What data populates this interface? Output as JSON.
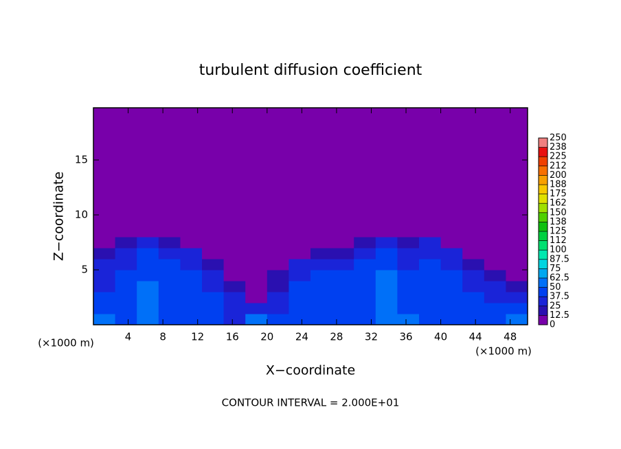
{
  "chart_data": {
    "type": "contour",
    "title": "turbulent diffusion coefficient",
    "xlabel": "X−coordinate",
    "ylabel": "Z−coordinate",
    "x_unit": "(×1000 m)",
    "y_unit": "(×1000 m)",
    "footer": "CONTOUR INTERVAL = 2.000E+01",
    "xlim": [
      0,
      50
    ],
    "ylim": [
      0,
      19.75
    ],
    "xticks": [
      4,
      8,
      12,
      16,
      20,
      24,
      28,
      32,
      36,
      40,
      44,
      48
    ],
    "yticks": [
      5,
      10,
      15
    ],
    "colorbar": {
      "ticks": [
        0,
        12.5,
        25,
        37.5,
        50,
        62.5,
        75,
        87.5,
        100,
        {
          "value": 112.5,
          "label": "112"
        },
        125,
        {
          "value": 137.5,
          "label": "138"
        },
        150,
        {
          "value": 162.5,
          "label": "162"
        },
        175,
        {
          "value": 187.5,
          "label": "188"
        },
        200,
        {
          "value": 212.5,
          "label": "212"
        },
        225,
        {
          "value": 237.5,
          "label": "238"
        },
        250
      ],
      "colors": [
        "#7800aa",
        "#2a10b0",
        "#1a24d8",
        "#0040f0",
        "#0070f8",
        "#00a8f0",
        "#00d4e0",
        "#00e8b0",
        "#00e070",
        "#00d040",
        "#10c010",
        "#50d000",
        "#a0e000",
        "#e0e000",
        "#f8c800",
        "#f8a000",
        "#f87000",
        "#f04000",
        "#e81010",
        "#f08080"
      ]
    },
    "field": {
      "x_edges": [
        0,
        2.5,
        5,
        7.5,
        10,
        12.5,
        15,
        17.5,
        20,
        22.5,
        25,
        27.5,
        30,
        32.5,
        35,
        37.5,
        40,
        42.5,
        45,
        47.5,
        50
      ],
      "z_edges": [
        0,
        1,
        2,
        3,
        4,
        5,
        6,
        7,
        8,
        9
      ],
      "values": [
        [
          55,
          40,
          62,
          45,
          40,
          40,
          35,
          55,
          40,
          38,
          40,
          40,
          45,
          62,
          50,
          40,
          40,
          40,
          45,
          55
        ],
        [
          40,
          38,
          60,
          40,
          38,
          38,
          30,
          25,
          35,
          38,
          40,
          40,
          40,
          62,
          45,
          38,
          38,
          38,
          40,
          40
        ],
        [
          38,
          40,
          55,
          40,
          40,
          38,
          25,
          5,
          30,
          40,
          42,
          45,
          38,
          60,
          40,
          38,
          38,
          38,
          35,
          30
        ],
        [
          35,
          40,
          50,
          42,
          40,
          35,
          15,
          0,
          20,
          38,
          45,
          40,
          40,
          55,
          38,
          40,
          40,
          35,
          30,
          20
        ],
        [
          35,
          38,
          45,
          40,
          38,
          30,
          5,
          0,
          15,
          35,
          40,
          40,
          42,
          50,
          38,
          40,
          38,
          30,
          15,
          5
        ],
        [
          30,
          35,
          40,
          38,
          35,
          20,
          0,
          0,
          5,
          25,
          35,
          35,
          40,
          45,
          35,
          38,
          35,
          20,
          5,
          0
        ],
        [
          15,
          35,
          38,
          35,
          25,
          5,
          0,
          0,
          0,
          5,
          15,
          20,
          35,
          40,
          30,
          35,
          25,
          5,
          0,
          0
        ],
        [
          0,
          15,
          30,
          20,
          5,
          0,
          0,
          0,
          0,
          0,
          0,
          5,
          20,
          30,
          15,
          25,
          10,
          0,
          0,
          0
        ],
        [
          0,
          0,
          5,
          0,
          0,
          0,
          0,
          0,
          0,
          0,
          0,
          0,
          0,
          5,
          0,
          0,
          0,
          0,
          0,
          0
        ]
      ]
    }
  }
}
